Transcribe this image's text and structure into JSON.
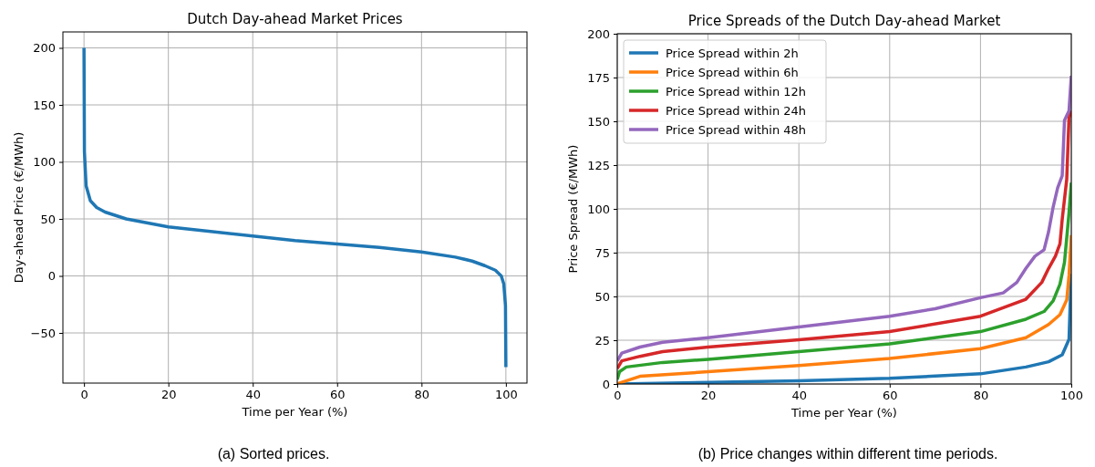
{
  "chart_data": [
    {
      "type": "line",
      "title": "Dutch Day-ahead Market Prices",
      "xlabel": "Time per Year (%)",
      "ylabel": "Day-ahead Price (€/MWh)",
      "xlim": [
        -5,
        105
      ],
      "ylim": [
        -94,
        214
      ],
      "xticks": [
        0,
        20,
        40,
        60,
        80,
        100
      ],
      "yticks": [
        {
          "value": -50,
          "label": "−50"
        },
        0,
        50,
        100,
        150,
        200
      ],
      "grid": true,
      "annotations": [
        "(a) Sorted prices."
      ],
      "series": [
        {
          "color": "#1f77b4",
          "x": [
            0,
            0.1,
            0.5,
            1.5,
            3,
            5,
            10,
            20,
            30,
            40,
            50,
            60,
            70,
            80,
            88,
            92,
            95,
            97.5,
            98.9,
            99.5,
            99.9,
            100
          ],
          "values": [
            200,
            109,
            79,
            66,
            60,
            56,
            50,
            43,
            39,
            35,
            31,
            28,
            25,
            21,
            16.5,
            13,
            9,
            5,
            0,
            -7,
            -26,
            -80
          ]
        }
      ]
    },
    {
      "type": "line",
      "title": "Price Spreads of the Dutch Day-ahead Market",
      "xlabel": "Time per Year (%)",
      "ylabel": "Price Spread (€/MWh)",
      "xlim": [
        0,
        100
      ],
      "ylim": [
        0,
        200
      ],
      "xticks": [
        0,
        20,
        40,
        60,
        80,
        100
      ],
      "yticks": [
        0,
        25,
        50,
        75,
        100,
        125,
        150,
        175,
        200
      ],
      "grid": true,
      "legend": "top left",
      "annotations": [
        "(b) Price changes within different time periods."
      ],
      "series": [
        {
          "name": "Price Spread within 2h",
          "color": "#1f77b4",
          "x": [
            0,
            20,
            40,
            60,
            80,
            90,
            95,
            98,
            99.5,
            99.9,
            100
          ],
          "values": [
            0,
            0.9,
            1.8,
            3.2,
            5.8,
            9.7,
            12.7,
            16.7,
            25.5,
            57,
            63
          ]
        },
        {
          "name": "Price Spread within 6h",
          "color": "#ff7f0e",
          "x": [
            0,
            1,
            5,
            20,
            40,
            60,
            80,
            90,
            95,
            97.5,
            99,
            99.5,
            100
          ],
          "values": [
            0,
            1,
            4.4,
            7,
            10.6,
            14.6,
            20.2,
            26.4,
            34,
            39.6,
            48,
            62,
            85
          ]
        },
        {
          "name": "Price Spread within 12h",
          "color": "#2ca02c",
          "x": [
            0,
            0.5,
            2,
            10,
            20,
            40,
            60,
            80,
            90,
            94,
            96,
            97.5,
            98.5,
            99.5,
            100
          ],
          "values": [
            2.6,
            7,
            9.7,
            12.3,
            14.1,
            18.5,
            22.9,
            29.9,
            37,
            41.4,
            47.5,
            57,
            69.5,
            97.7,
            115
          ]
        },
        {
          "name": "Price Spread within 24h",
          "color": "#d62728",
          "x": [
            0,
            1,
            5,
            10,
            20,
            40,
            60,
            80,
            90,
            93.5,
            95,
            96.5,
            97.5,
            98,
            99,
            99.5,
            100
          ],
          "values": [
            8.8,
            13.2,
            15.8,
            18.5,
            21.1,
            25.2,
            29.9,
            38.7,
            48.4,
            58,
            66,
            73,
            80,
            94,
            117,
            152,
            156
          ]
        },
        {
          "name": "Price Spread within 48h",
          "color": "#9467bd",
          "x": [
            0,
            1,
            5,
            10,
            20,
            40,
            60,
            70,
            80,
            85,
            88,
            90,
            92,
            94,
            95,
            96,
            97,
            98,
            98.5,
            99.5,
            100
          ],
          "values": [
            13.2,
            17.6,
            21.1,
            23.8,
            26.4,
            32.6,
            38.7,
            43,
            49.3,
            52,
            58,
            66,
            73,
            76.6,
            87,
            101,
            112,
            119,
            150.5,
            156,
            176
          ]
        }
      ]
    }
  ]
}
